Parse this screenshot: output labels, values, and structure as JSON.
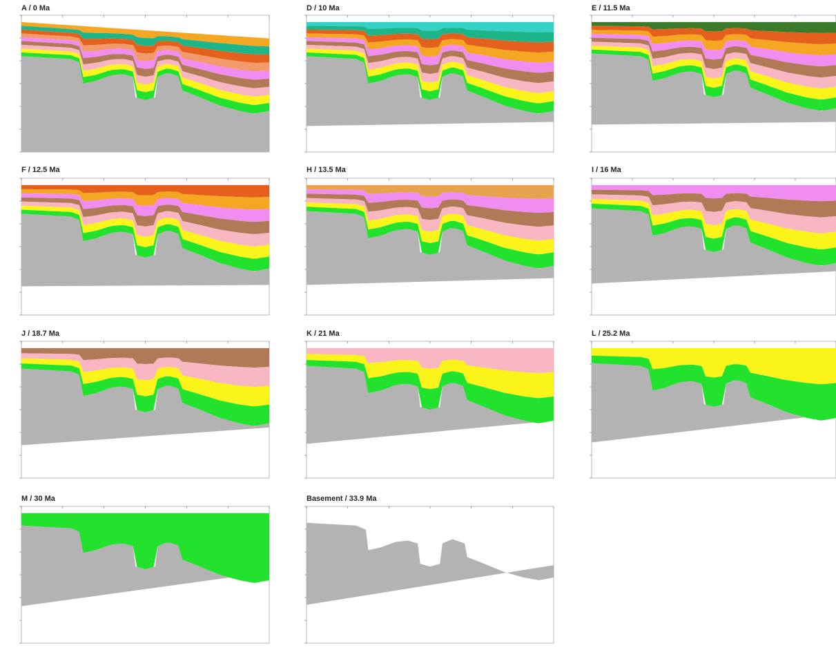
{
  "figure": {
    "panels": [
      {
        "id": "A",
        "title": "A / 0 Ma",
        "layers": [
          "orange",
          "teal",
          "dark-orange",
          "salmon",
          "violet",
          "brown",
          "pink",
          "yellow",
          "green"
        ],
        "basement": "grey",
        "white_base": false
      },
      {
        "id": "D",
        "title": "D / 10 Ma",
        "layers": [
          "cyan",
          "teal",
          "dark-orange",
          "orange",
          "violet",
          "brown",
          "pink",
          "yellow",
          "green"
        ],
        "basement": "grey",
        "white_base": true
      },
      {
        "id": "E",
        "title": "E / 11.5 Ma",
        "layers": [
          "dark-green",
          "dark-orange",
          "orange",
          "violet",
          "brown",
          "pink",
          "yellow",
          "green"
        ],
        "basement": "grey",
        "white_base": true
      },
      {
        "id": "F",
        "title": "F / 12.5 Ma",
        "layers": [
          "dark-orange",
          "orange",
          "violet",
          "brown",
          "pink",
          "yellow",
          "green"
        ],
        "basement": "grey",
        "white_base": true
      },
      {
        "id": "H",
        "title": "H / 13.5 Ma",
        "layers": [
          "tan",
          "violet",
          "brown",
          "pink",
          "yellow",
          "green"
        ],
        "basement": "grey",
        "white_base": true
      },
      {
        "id": "I",
        "title": "I / 16 Ma",
        "layers": [
          "violet",
          "brown",
          "pink",
          "yellow",
          "green"
        ],
        "basement": "grey",
        "white_base": true
      },
      {
        "id": "J",
        "title": "J / 18.7 Ma",
        "layers": [
          "brown",
          "pink",
          "yellow",
          "green"
        ],
        "basement": "grey",
        "white_base": true
      },
      {
        "id": "K",
        "title": "K / 21 Ma",
        "layers": [
          "pink",
          "yellow",
          "green"
        ],
        "basement": "grey",
        "white_base": true
      },
      {
        "id": "L",
        "title": "L / 25.2 Ma",
        "layers": [
          "yellow",
          "green"
        ],
        "basement": "grey",
        "white_base": true
      },
      {
        "id": "M",
        "title": "M / 30 Ma",
        "layers": [
          "green"
        ],
        "basement": "grey",
        "white_base": true
      },
      {
        "id": "Basement",
        "title": "Basement / 33.9 Ma",
        "layers": [],
        "basement": "grey",
        "white_base": true
      }
    ],
    "colors": {
      "orange": "#f5a623",
      "teal": "#1fb58a",
      "cyan": "#33d1c6",
      "dark-orange": "#e4601c",
      "salmon": "#f39a6a",
      "violet": "#f18cf0",
      "brown": "#b07a56",
      "pink": "#f7b6c2",
      "yellow": "#fbf41a",
      "green": "#22e22e",
      "grey": "#b3b3b3",
      "dark-green": "#3a7a2a",
      "tan": "#e9a24e"
    }
  }
}
